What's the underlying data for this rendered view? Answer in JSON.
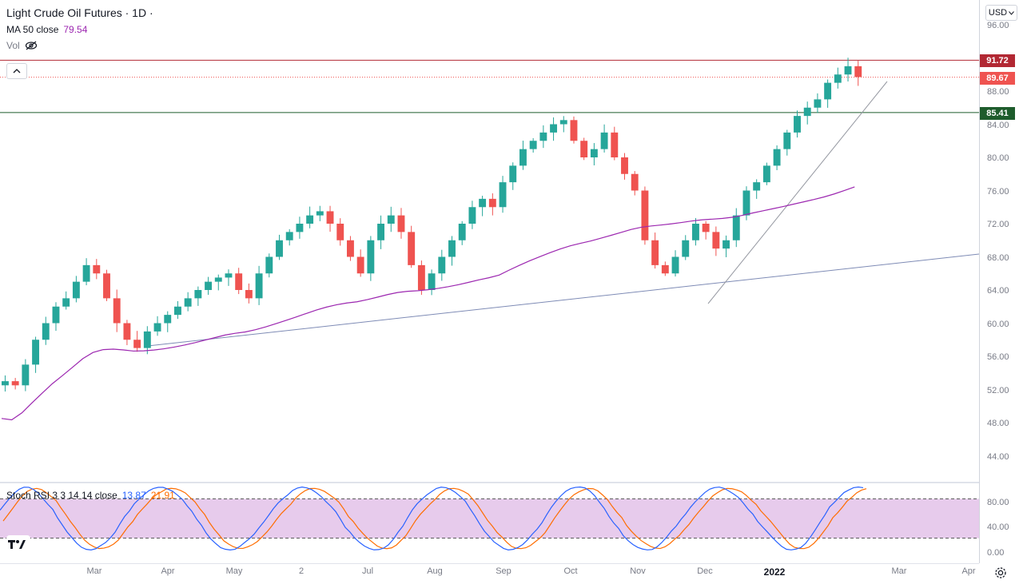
{
  "header": {
    "title": "Light Crude Oil Futures · 1D ·",
    "ma_label": "MA 50 close",
    "ma_value": "79.54",
    "vol_label": "Vol"
  },
  "currency": "USD",
  "price_scale": {
    "ticks": [
      "96.00",
      "88.00",
      "84.00",
      "80.00",
      "76.00",
      "72.00",
      "68.00",
      "64.00",
      "60.00",
      "56.00",
      "52.00",
      "48.00",
      "44.00"
    ],
    "badges": {
      "resistance": "91.72",
      "last": "89.67",
      "support": "85.41"
    }
  },
  "stoch": {
    "label": "Stoch RSI 3 3 14 14 close",
    "k_value": "13.87",
    "d_value": "21.91",
    "ticks": [
      "80.00",
      "40.00",
      "0.00"
    ]
  },
  "time_axis": {
    "labels": [
      "Mar",
      "Apr",
      "May",
      "2",
      "Jul",
      "Aug",
      "Sep",
      "Oct",
      "Nov",
      "Dec",
      "2022",
      "Mar",
      "Apr"
    ]
  },
  "colors": {
    "up": "#26a69a",
    "down": "#ef5350",
    "ma": "#9c27b0",
    "resistance": "#b22833",
    "support": "#1e5c2c",
    "trend": "#9598a1",
    "stoch_k": "#2962ff",
    "stoch_d": "#ff6d00",
    "stoch_band": "#e1bee7"
  },
  "icons": {
    "eye": "eye-off-icon",
    "collapse": "chevron-up-icon",
    "settings": "gear-icon",
    "logo": "tradingview-logo"
  },
  "chart_data": {
    "type": "candlestick",
    "title": "Light Crude Oil Futures · 1D ·",
    "ylim": [
      40,
      98
    ],
    "horizontal_lines": [
      91.72,
      89.67,
      85.41
    ],
    "ma50_last": 79.54,
    "approx_closes": [
      53,
      52.5,
      55,
      58,
      60,
      62,
      63,
      65,
      67,
      66,
      63,
      60,
      58,
      57,
      59,
      60,
      61,
      62,
      63,
      64,
      65,
      65.5,
      66,
      64,
      63,
      66,
      68,
      70,
      71,
      72,
      73,
      73.5,
      72,
      70,
      68,
      66,
      70,
      72,
      73,
      71,
      67,
      64,
      66,
      68,
      70,
      72,
      74,
      75,
      74,
      77,
      79,
      81,
      82,
      83,
      84,
      84.5,
      82,
      80,
      81,
      83,
      80,
      78,
      76,
      70,
      67,
      66,
      68,
      70,
      72,
      71,
      69,
      70,
      73,
      76,
      77,
      79,
      81,
      83,
      85,
      86,
      87,
      89,
      90,
      91,
      89.7
    ]
  }
}
